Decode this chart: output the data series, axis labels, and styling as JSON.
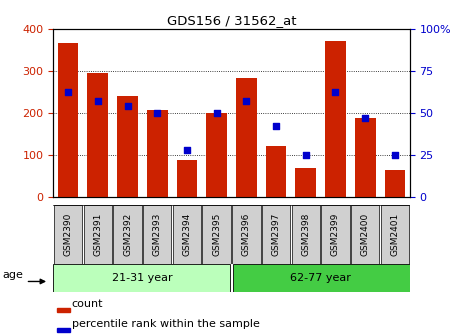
{
  "title": "GDS156 / 31562_at",
  "samples": [
    "GSM2390",
    "GSM2391",
    "GSM2392",
    "GSM2393",
    "GSM2394",
    "GSM2395",
    "GSM2396",
    "GSM2397",
    "GSM2398",
    "GSM2399",
    "GSM2400",
    "GSM2401"
  ],
  "counts": [
    365,
    295,
    240,
    205,
    88,
    198,
    282,
    120,
    68,
    370,
    188,
    63
  ],
  "percentiles": [
    62,
    57,
    54,
    50,
    28,
    50,
    57,
    42,
    25,
    62,
    47,
    25
  ],
  "group1_label": "21-31 year",
  "group2_label": "62-77 year",
  "group1_count": 6,
  "group2_count": 6,
  "bar_color": "#cc2200",
  "dot_color": "#0000cc",
  "ylim_left": [
    0,
    400
  ],
  "ylim_right": [
    0,
    100
  ],
  "yticks_left": [
    0,
    100,
    200,
    300,
    400
  ],
  "yticks_right": [
    0,
    25,
    50,
    75,
    100
  ],
  "age_label": "age",
  "legend_count_label": "count",
  "legend_pct_label": "percentile rank within the sample",
  "group1_color": "#bbffbb",
  "group2_color": "#44cc44",
  "xlabel_bg": "#cccccc",
  "fig_width": 4.63,
  "fig_height": 3.36,
  "dpi": 100
}
